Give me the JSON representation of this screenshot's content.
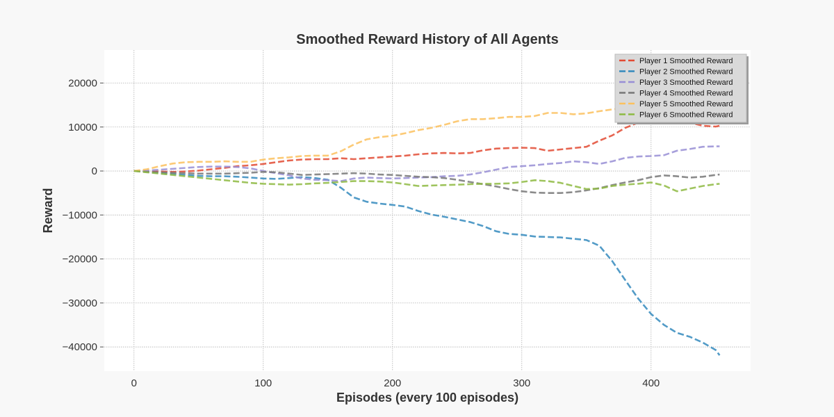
{
  "chart_data": {
    "type": "line",
    "title": "Smoothed Reward History of All Agents",
    "xlabel": "Episodes (every 100 episodes)",
    "ylabel": "Reward",
    "xlim": [
      -23,
      477
    ],
    "ylim": [
      -45500,
      27500
    ],
    "xticks": [
      0,
      100,
      200,
      300,
      400
    ],
    "yticks": [
      20000,
      10000,
      0,
      -10000,
      -20000,
      -30000,
      -40000
    ],
    "xtick_labels": [
      "0",
      "100",
      "200",
      "300",
      "400"
    ],
    "ytick_labels": [
      "20000",
      "10000",
      "0",
      "−10000",
      "−20000",
      "−30000",
      "−40000"
    ],
    "grid": true,
    "legend_position": "top-right",
    "x": [
      0,
      10,
      20,
      30,
      40,
      50,
      60,
      70,
      80,
      90,
      100,
      110,
      120,
      130,
      140,
      150,
      160,
      170,
      180,
      190,
      200,
      210,
      220,
      230,
      240,
      250,
      260,
      270,
      280,
      290,
      300,
      310,
      320,
      330,
      340,
      350,
      360,
      370,
      380,
      390,
      400,
      410,
      420,
      430,
      440,
      450,
      453
    ],
    "series": [
      {
        "name": "Player 1 Smoothed Reward",
        "color": "#e24a33",
        "values": [
          0,
          -100,
          -100,
          -200,
          -100,
          100,
          400,
          700,
          1100,
          1300,
          1600,
          2000,
          2400,
          2600,
          2700,
          2700,
          2900,
          2700,
          2900,
          3100,
          3300,
          3500,
          3800,
          4000,
          4100,
          4000,
          4100,
          4700,
          5100,
          5200,
          5300,
          5200,
          4600,
          4900,
          5200,
          5500,
          6900,
          8100,
          9800,
          11000,
          11400,
          11600,
          11400,
          11000,
          10300,
          10100,
          10300
        ]
      },
      {
        "name": "Player 2 Smoothed Reward",
        "color": "#348abd",
        "values": [
          0,
          -200,
          -500,
          -700,
          -900,
          -1100,
          -1200,
          -1200,
          -1300,
          -1500,
          -1700,
          -1800,
          -1600,
          -1400,
          -1600,
          -2000,
          -3800,
          -6000,
          -7000,
          -7400,
          -7700,
          -8100,
          -9100,
          -9900,
          -10400,
          -11000,
          -11600,
          -12500,
          -13700,
          -14300,
          -14500,
          -14900,
          -15000,
          -15100,
          -15400,
          -15700,
          -17000,
          -20500,
          -24800,
          -29000,
          -32500,
          -35000,
          -36800,
          -37700,
          -39000,
          -40700,
          -41900
        ]
      },
      {
        "name": "Player 3 Smoothed Reward",
        "color": "#988ed5",
        "values": [
          0,
          100,
          300,
          500,
          700,
          900,
          1000,
          1000,
          900,
          600,
          0,
          -500,
          -1000,
          -1700,
          -2000,
          -2100,
          -2300,
          -1700,
          -1500,
          -1600,
          -1700,
          -1600,
          -1500,
          -1400,
          -1200,
          -1100,
          -800,
          -300,
          300,
          900,
          1100,
          1300,
          1600,
          1800,
          2200,
          2000,
          1600,
          2200,
          3000,
          3300,
          3400,
          3600,
          4600,
          5000,
          5500,
          5600,
          5600
        ]
      },
      {
        "name": "Player 4 Smoothed Reward",
        "color": "#777777",
        "values": [
          0,
          -200,
          -300,
          -400,
          -500,
          -600,
          -600,
          -600,
          -500,
          -400,
          -200,
          -300,
          -600,
          -900,
          -800,
          -700,
          -600,
          -500,
          -600,
          -800,
          -900,
          -1100,
          -1300,
          -1400,
          -1600,
          -2000,
          -2500,
          -3000,
          -3500,
          -4100,
          -4600,
          -4900,
          -5000,
          -5000,
          -4800,
          -4400,
          -3900,
          -3200,
          -2600,
          -2100,
          -1400,
          -1000,
          -1200,
          -1500,
          -1300,
          -900,
          -800
        ]
      },
      {
        "name": "Player 5 Smoothed Reward",
        "color": "#fbc15e",
        "values": [
          0,
          400,
          1100,
          1700,
          2000,
          2100,
          2100,
          2200,
          2100,
          2100,
          2600,
          2900,
          3100,
          3400,
          3500,
          3500,
          4500,
          6000,
          7200,
          7700,
          8000,
          8600,
          9300,
          9800,
          10500,
          11300,
          11800,
          11800,
          12000,
          12300,
          12300,
          12500,
          13200,
          13200,
          12900,
          13100,
          13600,
          14000,
          14300,
          14600,
          14800,
          15000,
          15200,
          15400,
          15600,
          15800,
          15900
        ]
      },
      {
        "name": "Player 6 Smoothed Reward",
        "color": "#8eba42",
        "values": [
          0,
          -300,
          -600,
          -900,
          -1200,
          -1500,
          -1800,
          -2100,
          -2400,
          -2700,
          -2900,
          -3000,
          -3100,
          -3000,
          -2800,
          -2700,
          -2500,
          -2300,
          -2300,
          -2400,
          -2600,
          -3000,
          -3400,
          -3300,
          -3200,
          -3100,
          -3000,
          -2900,
          -2900,
          -2800,
          -2500,
          -2100,
          -2300,
          -2700,
          -3400,
          -4100,
          -4000,
          -3400,
          -3100,
          -2900,
          -2600,
          -3300,
          -4600,
          -4000,
          -3400,
          -3000,
          -2900
        ]
      }
    ]
  }
}
